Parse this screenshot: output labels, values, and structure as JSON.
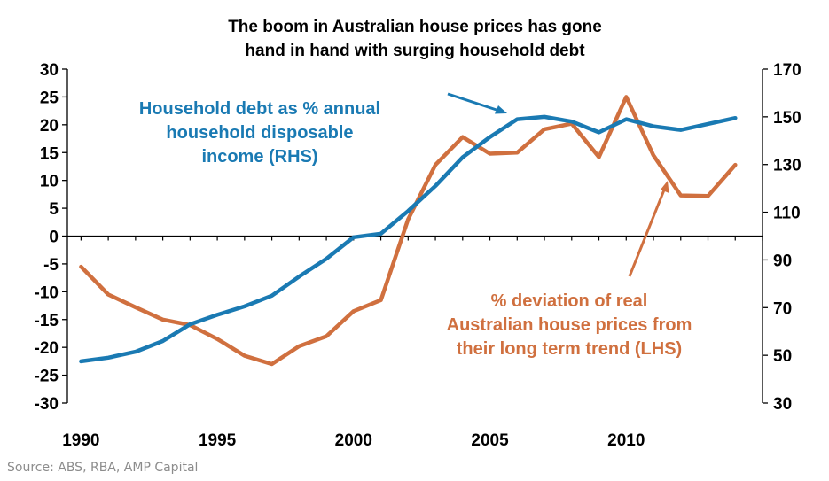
{
  "chart_data": {
    "type": "line",
    "title": [
      "The boom in Australian house prices has gone",
      "hand in hand with surging household debt"
    ],
    "source": "Source: ABS, RBA, AMP Capital",
    "x_ticks": [
      "1990",
      "1995",
      "2000",
      "2005",
      "2010"
    ],
    "xlim": [
      1989.5,
      2015
    ],
    "y_left": {
      "lim": [
        -30,
        30
      ],
      "ticks": [
        "30",
        "25",
        "20",
        "15",
        "10",
        "5",
        "0",
        "-5",
        "-10",
        "-15",
        "-20",
        "-25",
        "-30"
      ]
    },
    "y_right": {
      "lim": [
        30,
        170
      ],
      "ticks": [
        "170",
        "150",
        "130",
        "110",
        "90",
        "70",
        "50",
        "30"
      ]
    },
    "grid": false,
    "colors": {
      "debt": "#1a7ab3",
      "prices": "#d0703f",
      "axis": "#000000"
    },
    "series": [
      {
        "name": "Household debt as % annual household disposable income (RHS)",
        "axis": "right",
        "label_lines": [
          "Household debt as % annual",
          "household disposable",
          "income (RHS)"
        ],
        "x": [
          1990,
          1991,
          1992,
          1993,
          1994,
          1995,
          1996,
          1997,
          1998,
          1999,
          2000,
          2001,
          2002,
          2003,
          2004,
          2005,
          2006,
          2007,
          2008,
          2009,
          2010,
          2011,
          2012,
          2013,
          2014
        ],
        "values": [
          47.5,
          49,
          51.5,
          56,
          63,
          67,
          70.5,
          75,
          83,
          90.5,
          99.5,
          101,
          110.5,
          121,
          133,
          141.5,
          149,
          150,
          148,
          143.5,
          149,
          146,
          144.5,
          147,
          149.5
        ]
      },
      {
        "name": "% deviation of real Australian house prices from their long term trend (LHS)",
        "axis": "left",
        "label_lines": [
          "% deviation of real",
          "Australian house prices from",
          "their long term trend (LHS)"
        ],
        "x": [
          1990,
          1991,
          1992,
          1993,
          1994,
          1995,
          1996,
          1997,
          1998,
          1999,
          2000,
          2001,
          2002,
          2003,
          2004,
          2005,
          2006,
          2007,
          2008,
          2009,
          2010,
          2011,
          2012,
          2013,
          2014
        ],
        "values": [
          -5.5,
          -10.5,
          -12.8,
          -15,
          -16,
          -18.5,
          -21.5,
          -23,
          -19.8,
          -18,
          -13.5,
          -11.5,
          3,
          12.8,
          17.8,
          14.8,
          15,
          19.2,
          20.2,
          14.2,
          25,
          14.5,
          7.3,
          7.2,
          12.8
        ]
      }
    ]
  }
}
